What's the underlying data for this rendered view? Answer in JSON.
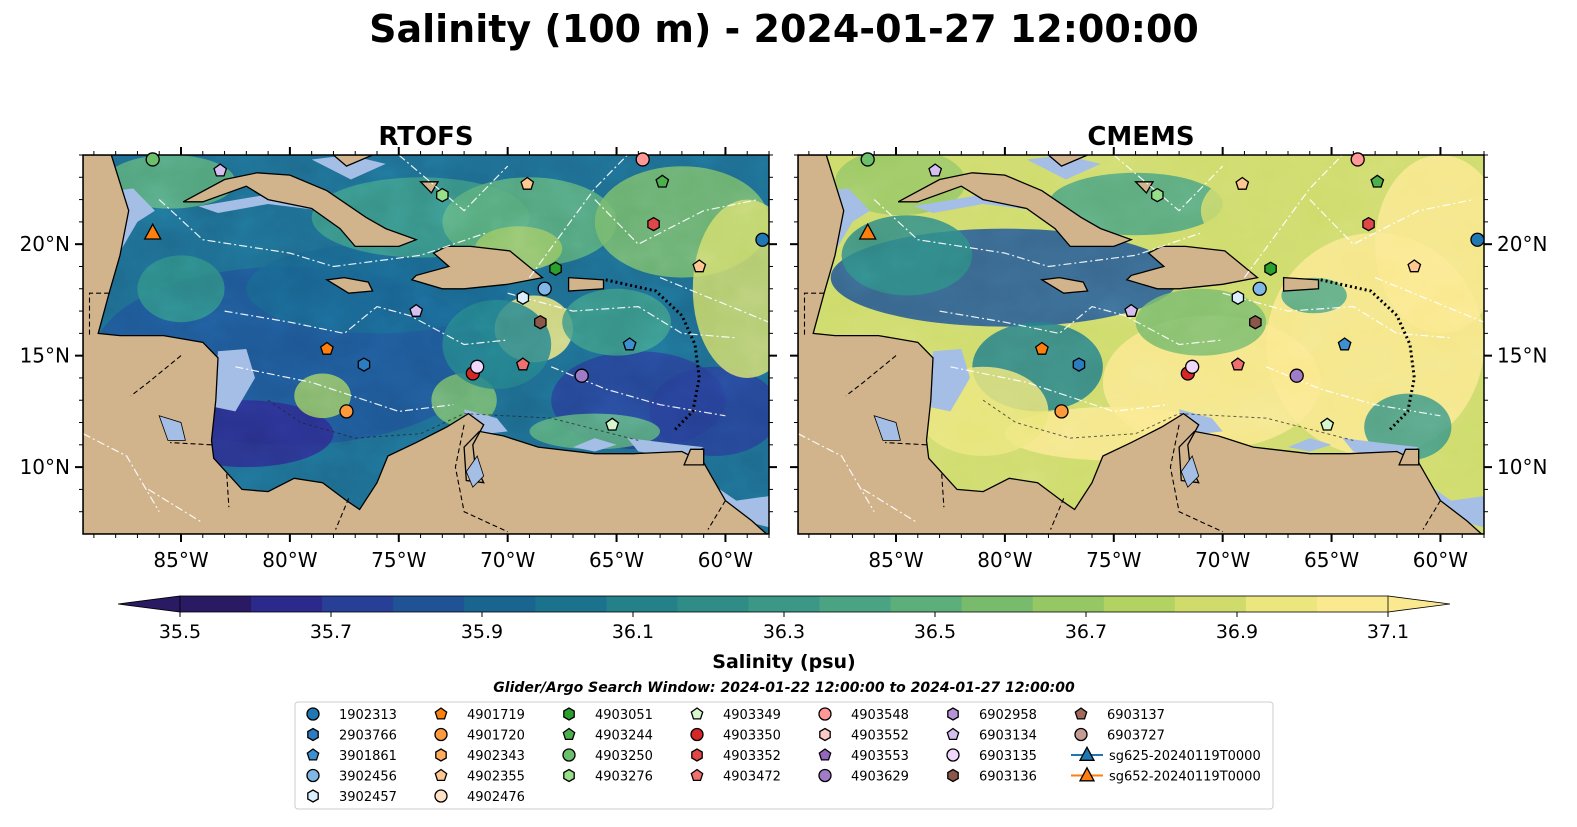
{
  "title": "Salinity (100 m) - 2024-01-27 12:00:00",
  "panels": [
    {
      "title": "RTOFS",
      "field": "rtofs"
    },
    {
      "title": "CMEMS",
      "field": "cmems"
    }
  ],
  "axes": {
    "x_ticks": [
      "85°W",
      "80°W",
      "75°W",
      "70°W",
      "65°W",
      "60°W"
    ],
    "y_ticks": [
      "20°N",
      "15°N",
      "10°N"
    ],
    "lon_range": [
      -89.5,
      -58.0
    ],
    "lat_range": [
      7.0,
      24.0
    ],
    "lon_tick_values": [
      -85,
      -80,
      -75,
      -70,
      -65,
      -60
    ],
    "lat_tick_values": [
      20,
      15,
      10
    ]
  },
  "colorbar": {
    "label": "Salinity (psu)",
    "ticks": [
      "35.5",
      "35.7",
      "35.9",
      "36.1",
      "36.3",
      "36.5",
      "36.7",
      "36.9",
      "37.1"
    ],
    "tick_values": [
      35.5,
      35.7,
      35.9,
      36.1,
      36.3,
      36.5,
      36.7,
      36.9,
      37.1
    ],
    "range": [
      35.5,
      37.1
    ],
    "extend": "both",
    "colors": [
      "#2a1a63",
      "#2b2a8c",
      "#273f96",
      "#1f5396",
      "#19658f",
      "#1a728c",
      "#248089",
      "#2f8c86",
      "#3c9886",
      "#4aa383",
      "#5cae7b",
      "#78bb6c",
      "#96c765",
      "#b2d262",
      "#cfdc6c",
      "#ebe67d",
      "#fbe98f"
    ]
  },
  "search_window": "Glider/Argo Search Window: 2024-01-22 12:00:00 to 2024-01-27 12:00:00",
  "legend": [
    {
      "label": "1902313",
      "marker": "circle",
      "color": "#1f77b4"
    },
    {
      "label": "2903766",
      "marker": "hexagon",
      "color": "#2b7cc0"
    },
    {
      "label": "3901861",
      "marker": "pentagon",
      "color": "#3c8fd0"
    },
    {
      "label": "3902456",
      "marker": "circle",
      "color": "#7fb8e6"
    },
    {
      "label": "3902457",
      "marker": "hexagon",
      "color": "#dbeefb"
    },
    {
      "label": "4901719",
      "marker": "pentagon",
      "color": "#ff7f0e"
    },
    {
      "label": "4901720",
      "marker": "circle",
      "color": "#ff9a3c"
    },
    {
      "label": "4902343",
      "marker": "hexagon",
      "color": "#ffac5d"
    },
    {
      "label": "4902355",
      "marker": "pentagon",
      "color": "#ffc891"
    },
    {
      "label": "4902476",
      "marker": "circle",
      "color": "#ffe2c4"
    },
    {
      "label": "4903051",
      "marker": "hexagon",
      "color": "#2ca02c"
    },
    {
      "label": "4903244",
      "marker": "pentagon",
      "color": "#4cb04c"
    },
    {
      "label": "4903250",
      "marker": "circle",
      "color": "#6cc06c"
    },
    {
      "label": "4903276",
      "marker": "hexagon",
      "color": "#98df8a"
    },
    {
      "label": "4903349",
      "marker": "pentagon",
      "color": "#d7f7cf"
    },
    {
      "label": "4903350",
      "marker": "circle",
      "color": "#d62728"
    },
    {
      "label": "4903352",
      "marker": "hexagon",
      "color": "#e04848"
    },
    {
      "label": "4903472",
      "marker": "pentagon",
      "color": "#f07070"
    },
    {
      "label": "4903548",
      "marker": "circle",
      "color": "#ff9896"
    },
    {
      "label": "4903552",
      "marker": "hexagon",
      "color": "#ffc9c8"
    },
    {
      "label": "4903553",
      "marker": "pentagon",
      "color": "#9467bd"
    },
    {
      "label": "4903629",
      "marker": "circle",
      "color": "#a07cc8"
    },
    {
      "label": "6902958",
      "marker": "hexagon",
      "color": "#b595d8"
    },
    {
      "label": "6903134",
      "marker": "pentagon",
      "color": "#d4bff0"
    },
    {
      "label": "6903135",
      "marker": "circle",
      "color": "#efd8fb"
    },
    {
      "label": "6903136",
      "marker": "hexagon",
      "color": "#8c564b"
    },
    {
      "label": "6903137",
      "marker": "pentagon",
      "color": "#a0695c"
    },
    {
      "label": "6903727",
      "marker": "circle",
      "color": "#c49c94"
    },
    {
      "label": "sg625-20240119T0000",
      "marker": "triangle-line",
      "color": "#1f77b4"
    },
    {
      "label": "sg652-20240119T0000",
      "marker": "triangle-line",
      "color": "#ff7f0e"
    }
  ],
  "chart_data": [
    {
      "type": "heatmap",
      "title": "RTOFS",
      "xlabel": "",
      "ylabel": "",
      "xlim": [
        -89.5,
        -58.0
      ],
      "ylim": [
        7.0,
        24.0
      ],
      "value_range": [
        35.5,
        37.1
      ],
      "observations": [
        {
          "id": "sg652-20240119T0000",
          "lon": -86.3,
          "lat": 20.5
        },
        {
          "id": "1902313",
          "lon": -58.3,
          "lat": 20.2
        },
        {
          "id": "6903134",
          "lon": -83.2,
          "lat": 23.3
        },
        {
          "id": "4903250",
          "lon": -86.3,
          "lat": 23.8
        },
        {
          "id": "4903276",
          "lon": -73.0,
          "lat": 22.2
        },
        {
          "id": "4902355",
          "lon": -69.1,
          "lat": 22.7
        },
        {
          "id": "4903244",
          "lon": -62.9,
          "lat": 22.8
        },
        {
          "id": "4903548",
          "lon": -63.8,
          "lat": 23.8
        },
        {
          "id": "4903352",
          "lon": -63.3,
          "lat": 20.9
        },
        {
          "id": "4903051",
          "lon": -67.8,
          "lat": 18.9
        },
        {
          "id": "4902355",
          "lon": -61.2,
          "lat": 19.0
        },
        {
          "id": "3902457",
          "lon": -69.3,
          "lat": 17.6
        },
        {
          "id": "3902456",
          "lon": -68.3,
          "lat": 18.0
        },
        {
          "id": "6903134",
          "lon": -74.2,
          "lat": 17.0
        },
        {
          "id": "6903136",
          "lon": -68.5,
          "lat": 16.5
        },
        {
          "id": "3901861",
          "lon": -64.4,
          "lat": 15.5
        },
        {
          "id": "4901719",
          "lon": -78.3,
          "lat": 15.3
        },
        {
          "id": "2903766",
          "lon": -76.6,
          "lat": 14.6
        },
        {
          "id": "4903472",
          "lon": -69.3,
          "lat": 14.6
        },
        {
          "id": "4903350",
          "lon": -71.6,
          "lat": 14.2
        },
        {
          "id": "6903135",
          "lon": -71.4,
          "lat": 14.5
        },
        {
          "id": "4903629",
          "lon": -66.6,
          "lat": 14.1
        },
        {
          "id": "4901720",
          "lon": -77.4,
          "lat": 12.5
        },
        {
          "id": "4903349",
          "lon": -65.2,
          "lat": 11.9
        }
      ]
    },
    {
      "type": "heatmap",
      "title": "CMEMS",
      "xlabel": "",
      "ylabel": "",
      "xlim": [
        -89.5,
        -58.0
      ],
      "ylim": [
        7.0,
        24.0
      ],
      "value_range": [
        35.5,
        37.1
      ],
      "observations": "same as RTOFS"
    }
  ]
}
